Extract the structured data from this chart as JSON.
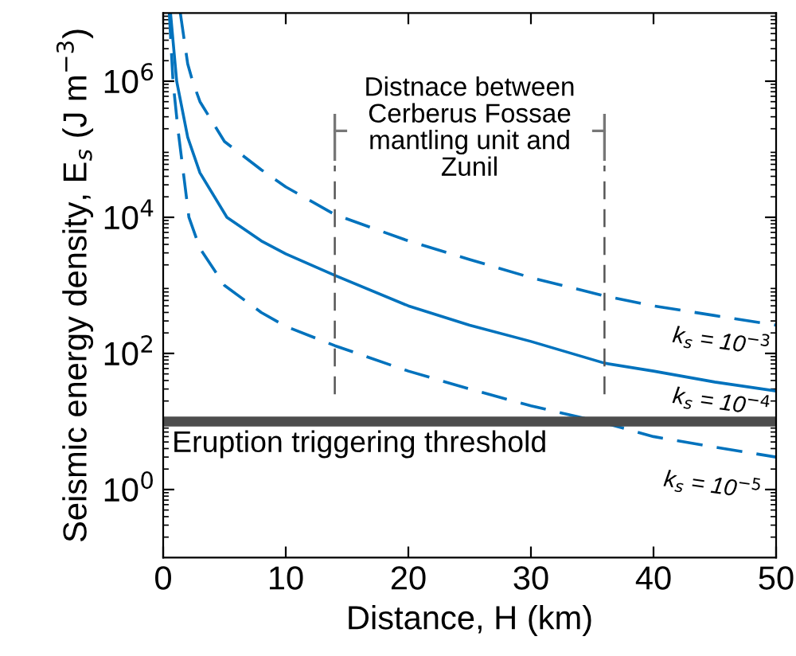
{
  "chart_data": {
    "type": "line",
    "xlabel": "Distance, H (km)",
    "ylabel": "Seismic energy density, E$_{s}$ (J m$^{−3}$)",
    "log": "y",
    "xlim": [
      0,
      50
    ],
    "ylim": [
      0.1,
      10000000
    ],
    "xticks": [
      0,
      10,
      20,
      30,
      40,
      50
    ],
    "yticks": [
      {
        "value": 1,
        "label": "10$^{0}$"
      },
      {
        "value": 100,
        "label": "10$^{2}$"
      },
      {
        "value": 10000,
        "label": "10$^{4}$"
      },
      {
        "value": 1000000,
        "label": "10$^{6}$"
      }
    ],
    "grid": false,
    "legend": false,
    "marker": "none",
    "series": [
      {
        "name": "k$_{s}$ = 10$^{−3}$",
        "color": "#0072bd",
        "line_style": "dashed",
        "x": [
          1.4,
          2,
          2.4,
          3,
          5,
          8,
          10,
          14,
          20,
          25,
          30,
          36,
          40,
          45,
          50
        ],
        "values": [
          10000000,
          1800000,
          1000000,
          500000,
          130000,
          50000,
          28000,
          11000,
          4500,
          2400,
          1300,
          700,
          500,
          360,
          260
        ]
      },
      {
        "name": "k$_{s}$ = 10$^{−4}$",
        "color": "#0072bd",
        "line_style": "solid",
        "x": [
          0.6,
          1.1,
          2,
          3,
          5.2,
          8,
          10,
          14,
          20,
          25,
          30,
          36,
          40,
          45,
          50
        ],
        "values": [
          10000000,
          1000000,
          150000,
          45000,
          10000,
          4500,
          2900,
          1400,
          500,
          260,
          150,
          72,
          55,
          38,
          28
        ]
      },
      {
        "name": "k$_{s}$ = 10$^{−5}$",
        "color": "#0072bd",
        "line_style": "dashed",
        "x": [
          0.5,
          0.8,
          1.2,
          2.1,
          3,
          5,
          8,
          10,
          14,
          20,
          25,
          30,
          36,
          40,
          45,
          50
        ],
        "values": [
          10000000,
          1000000,
          200000,
          10000,
          3500,
          1000,
          400,
          250,
          130,
          55,
          30,
          17,
          9.5,
          6,
          4.2,
          3
        ]
      }
    ],
    "ref_lines": [
      {
        "axis": "y",
        "value": 10,
        "label": "Eruption triggering threshold",
        "color": "#4d4d4d",
        "line_style": "solid"
      },
      {
        "axis": "x",
        "value": 14,
        "color": "#555555",
        "line_style": "dashed"
      },
      {
        "axis": "x",
        "value": 36,
        "color": "#555555",
        "line_style": "dashed"
      }
    ],
    "annotations": [
      "Distnace between\nCerberus Fossae\nmantling unit and\nZunil"
    ]
  }
}
